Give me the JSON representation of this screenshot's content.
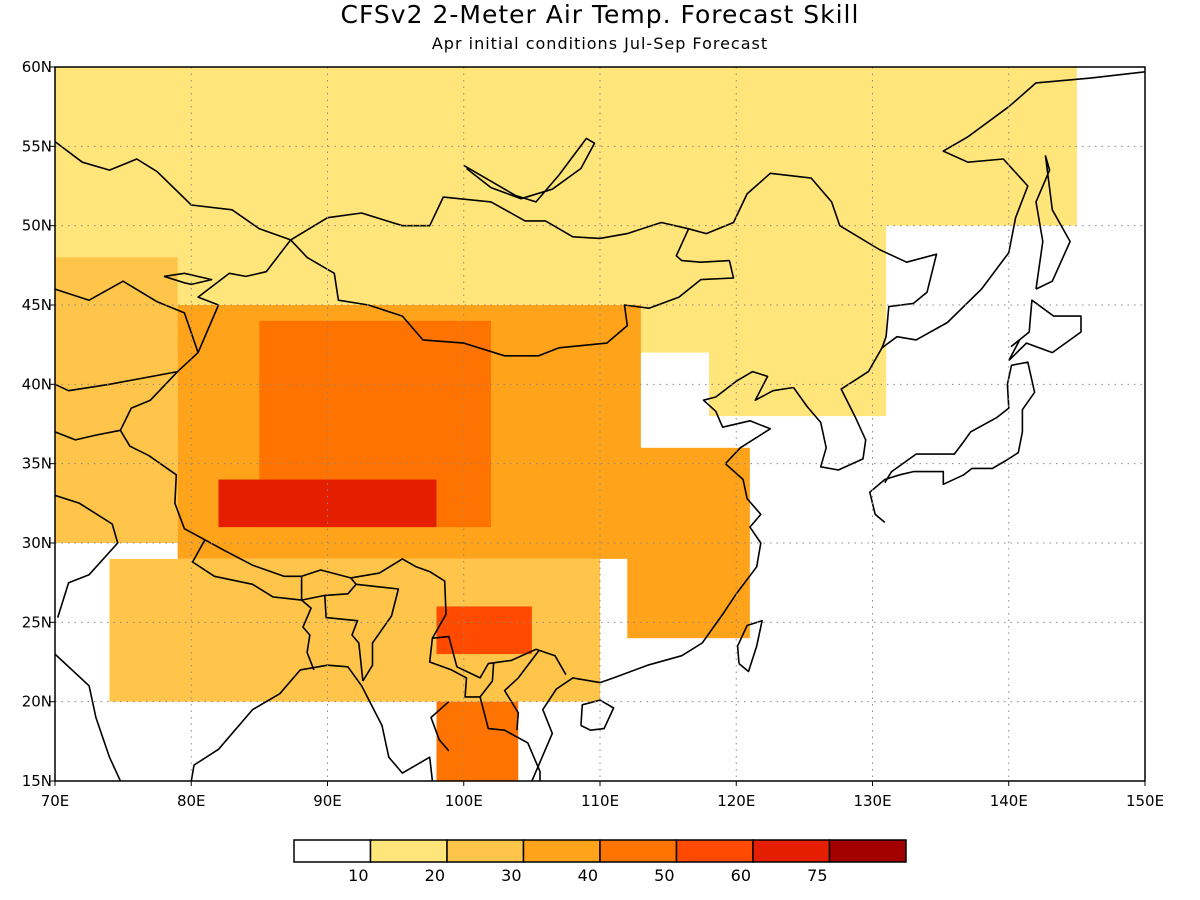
{
  "title": "CFSv2 2-Meter Air Temp. Forecast Skill",
  "subtitle": "Apr initial conditions  Jul-Sep Forecast",
  "map": {
    "lon_range": [
      70,
      150
    ],
    "lat_range": [
      15,
      60
    ],
    "lon_ticks": [
      "70E",
      "80E",
      "90E",
      "100E",
      "110E",
      "120E",
      "130E",
      "140E",
      "150E"
    ],
    "lat_ticks": [
      "15N",
      "20N",
      "25N",
      "30N",
      "35N",
      "40N",
      "45N",
      "50N",
      "55N",
      "60N"
    ],
    "grid": "dotted"
  },
  "colorbar": {
    "colors": [
      "#ffffff",
      "#ffe57a",
      "#ffc44a",
      "#ffa31a",
      "#ff7300",
      "#ff4a00",
      "#e61e00",
      "#a30000"
    ],
    "labels": [
      "10",
      "20",
      "30",
      "40",
      "50",
      "60",
      "75"
    ]
  },
  "chart_data": {
    "type": "heatmap",
    "title": "CFSv2 2-Meter Air Temp. Forecast Skill",
    "subtitle": "Apr initial conditions  Jul-Sep Forecast",
    "xlabel": "",
    "ylabel": "",
    "xlim": [
      70,
      150
    ],
    "ylim": [
      15,
      60
    ],
    "levels": [
      10,
      20,
      30,
      40,
      50,
      60,
      75
    ],
    "regions": [
      {
        "lon": [
          70,
          126
        ],
        "lat": [
          42,
          60
        ],
        "value": 15
      },
      {
        "lon": [
          70,
          79
        ],
        "lat": [
          30,
          48
        ],
        "value": 25
      },
      {
        "lon": [
          79,
          113
        ],
        "lat": [
          29,
          45
        ],
        "value": 35
      },
      {
        "lon": [
          85,
          102
        ],
        "lat": [
          31,
          44
        ],
        "value": 45
      },
      {
        "lon": [
          82,
          98
        ],
        "lat": [
          31,
          34
        ],
        "value": 62
      },
      {
        "lon": [
          74,
          110
        ],
        "lat": [
          20,
          29
        ],
        "value": 22
      },
      {
        "lon": [
          98,
          105
        ],
        "lat": [
          23,
          26
        ],
        "value": 50
      },
      {
        "lon": [
          98,
          104
        ],
        "lat": [
          15,
          20
        ],
        "value": 45
      },
      {
        "lon": [
          112,
          121
        ],
        "lat": [
          24,
          36
        ],
        "value": 35
      },
      {
        "lon": [
          118,
          131
        ],
        "lat": [
          38,
          55
        ],
        "value": 18
      },
      {
        "lon": [
          110,
          145
        ],
        "lat": [
          50,
          60
        ],
        "value": 12
      }
    ]
  }
}
